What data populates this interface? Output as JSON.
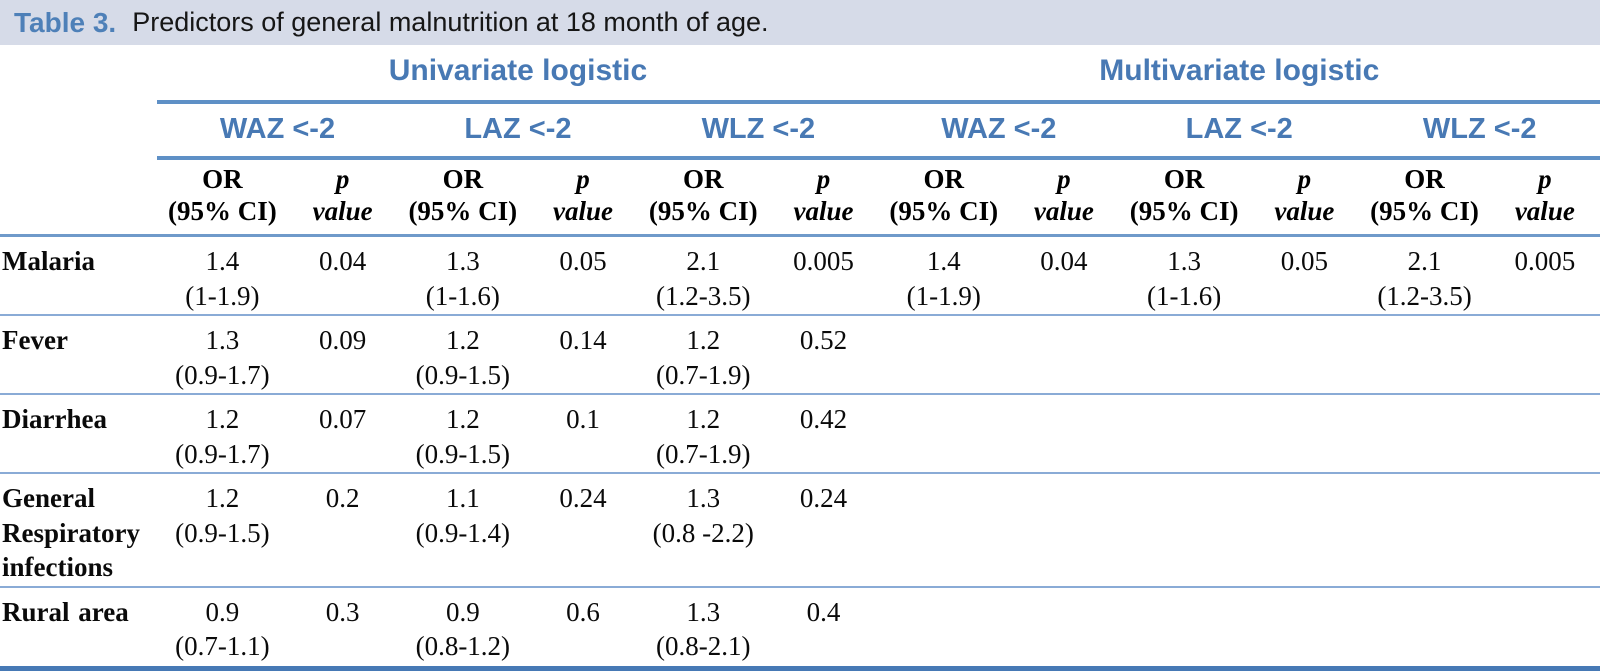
{
  "title": {
    "label": "Table 3.",
    "text": "Predictors of general malnutrition at 18 month of age."
  },
  "colors": {
    "titlebar_bg": "#d6dbe8",
    "header_blue": "#4879b4",
    "rule_blue": "#5e90c6",
    "row_rule_blue": "#8aabd6",
    "bottom_rule_blue": "#4679b5"
  },
  "table": {
    "groups": [
      {
        "label": "Univariate logistic"
      },
      {
        "label": "Multivariate logistic"
      }
    ],
    "subgroups": [
      "WAZ <-2",
      "LAZ <-2",
      "WLZ <-2",
      "WAZ <-2",
      "LAZ <-2",
      "WLZ <-2"
    ],
    "measure": {
      "or_line1": "OR",
      "or_line2": "(95% CI)",
      "p_line1": "p",
      "p_line2": "value"
    },
    "rows": [
      {
        "label": "Malaria",
        "cells": [
          {
            "or": "1.4",
            "ci": "(1-1.9)",
            "p": "0.04"
          },
          {
            "or": "1.3",
            "ci": "(1-1.6)",
            "p": "0.05"
          },
          {
            "or": "2.1",
            "ci": "(1.2-3.5)",
            "p": "0.005"
          },
          {
            "or": "1.4",
            "ci": "(1-1.9)",
            "p": "0.04"
          },
          {
            "or": "1.3",
            "ci": "(1-1.6)",
            "p": "0.05"
          },
          {
            "or": "2.1",
            "ci": "(1.2-3.5)",
            "p": "0.005"
          }
        ]
      },
      {
        "label": "Fever",
        "cells": [
          {
            "or": "1.3",
            "ci": "(0.9-1.7)",
            "p": "0.09"
          },
          {
            "or": "1.2",
            "ci": "(0.9-1.5)",
            "p": "0.14"
          },
          {
            "or": "1.2",
            "ci": "(0.7-1.9)",
            "p": "0.52"
          },
          {
            "or": "",
            "ci": "",
            "p": ""
          },
          {
            "or": "",
            "ci": "",
            "p": ""
          },
          {
            "or": "",
            "ci": "",
            "p": ""
          }
        ]
      },
      {
        "label": "Diarrhea",
        "cells": [
          {
            "or": "1.2",
            "ci": "(0.9-1.7)",
            "p": "0.07"
          },
          {
            "or": "1.2",
            "ci": "(0.9-1.5)",
            "p": "0.1"
          },
          {
            "or": "1.2",
            "ci": "(0.7-1.9)",
            "p": "0.42"
          },
          {
            "or": "",
            "ci": "",
            "p": ""
          },
          {
            "or": "",
            "ci": "",
            "p": ""
          },
          {
            "or": "",
            "ci": "",
            "p": ""
          }
        ]
      },
      {
        "label": "General Respiratory infections",
        "cells": [
          {
            "or": "1.2",
            "ci": "(0.9-1.5)",
            "p": "0.2"
          },
          {
            "or": "1.1",
            "ci": "(0.9-1.4)",
            "p": "0.24"
          },
          {
            "or": "1.3",
            "ci": "(0.8 -2.2)",
            "p": "0.24"
          },
          {
            "or": "",
            "ci": "",
            "p": ""
          },
          {
            "or": "",
            "ci": "",
            "p": ""
          },
          {
            "or": "",
            "ci": "",
            "p": ""
          }
        ]
      },
      {
        "label": "Rural area",
        "cells": [
          {
            "or": "0.9",
            "ci": "(0.7-1.1)",
            "p": "0.3"
          },
          {
            "or": "0.9",
            "ci": "(0.8-1.2)",
            "p": "0.6"
          },
          {
            "or": "1.3",
            "ci": "(0.8-2.1)",
            "p": "0.4"
          },
          {
            "or": "",
            "ci": "",
            "p": ""
          },
          {
            "or": "",
            "ci": "",
            "p": ""
          },
          {
            "or": "",
            "ci": "",
            "p": ""
          }
        ]
      }
    ]
  }
}
